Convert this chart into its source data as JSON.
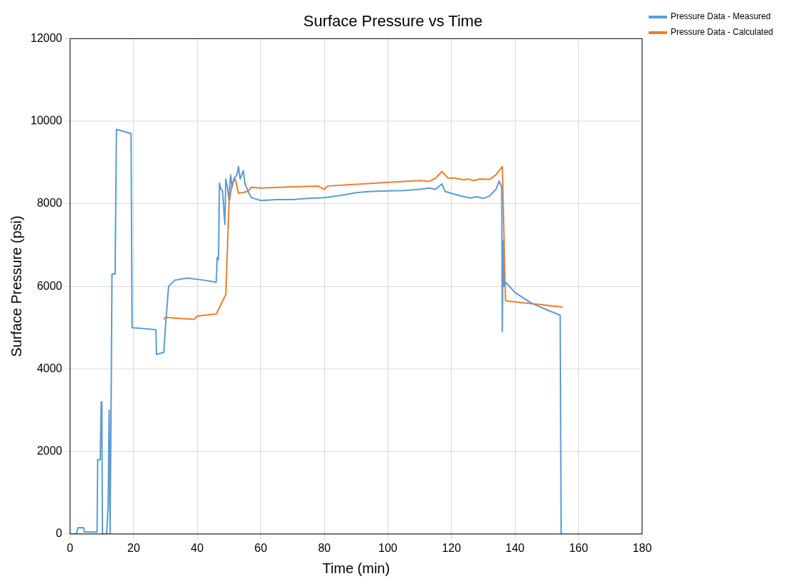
{
  "chart_data": {
    "type": "line",
    "title": "Surface Pressure vs Time",
    "xlabel": "Time (min)",
    "ylabel": "Surface Pressure (psi)",
    "xlim": [
      0,
      180
    ],
    "xticks": [
      0,
      20,
      40,
      60,
      80,
      100,
      120,
      140,
      160,
      180
    ],
    "ylim": [
      0,
      12000
    ],
    "yticks": [
      0,
      2000,
      4000,
      6000,
      8000,
      10000,
      12000
    ],
    "grid": true,
    "legend": "top right",
    "marker": "none",
    "line_style": "solid",
    "series": [
      {
        "name": "Pressure Data - Measured",
        "color": "#5b9bd5",
        "x": [
          0,
          2,
          2.5,
          4.3,
          4.5,
          8.5,
          8.7,
          9.5,
          9.8,
          10,
          10.2,
          11.5,
          12,
          12.3,
          12.6,
          12.9,
          13.2,
          14,
          14.2,
          14.6,
          19.2,
          19.5,
          27,
          27.2,
          29.5,
          30,
          31,
          33,
          37,
          42,
          46,
          46.3,
          46.7,
          47,
          47.5,
          48,
          48.7,
          49,
          49.5,
          50,
          50.5,
          51,
          51.5,
          52.5,
          53,
          53.5,
          54.5,
          55,
          56,
          57,
          60,
          65,
          70,
          75,
          80,
          85,
          90,
          95,
          100,
          105,
          110,
          113,
          115,
          117,
          118,
          121,
          124,
          126,
          128,
          130,
          132,
          134,
          135,
          135.8,
          136,
          136.2,
          136.5,
          137,
          140,
          145,
          150,
          154.2,
          154.5
        ],
        "values": [
          0,
          0,
          150,
          150,
          50,
          50,
          1800,
          1800,
          3200,
          3200,
          0,
          0,
          700,
          3000,
          0,
          3000,
          6300,
          6300,
          6500,
          9800,
          9700,
          5000,
          4950,
          4350,
          4400,
          5000,
          6000,
          6150,
          6200,
          6150,
          6100,
          6700,
          6650,
          8500,
          8350,
          8300,
          7500,
          8600,
          8400,
          8100,
          8700,
          8400,
          8600,
          8700,
          8900,
          8600,
          8800,
          8500,
          8300,
          8150,
          8080,
          8100,
          8100,
          8130,
          8150,
          8200,
          8270,
          8300,
          8310,
          8320,
          8350,
          8380,
          8350,
          8480,
          8300,
          8230,
          8170,
          8140,
          8170,
          8130,
          8190,
          8350,
          8550,
          8400,
          4900,
          7100,
          6000,
          6100,
          5850,
          5600,
          5430,
          5300,
          0
        ]
      },
      {
        "name": "Pressure Data - Calculated",
        "color": "#ed7d31",
        "x": [
          29.5,
          30,
          35,
          39,
          40,
          46,
          49,
          50,
          51,
          52,
          53,
          56,
          57,
          60,
          70,
          78,
          80,
          81,
          90,
          100,
          110,
          113,
          115,
          117,
          119,
          121,
          124,
          125,
          127,
          129,
          132,
          134,
          136,
          137,
          145,
          155
        ],
        "values": [
          5200,
          5250,
          5220,
          5200,
          5280,
          5330,
          5800,
          8000,
          8500,
          8600,
          8250,
          8300,
          8400,
          8380,
          8410,
          8430,
          8350,
          8430,
          8470,
          8520,
          8560,
          8540,
          8620,
          8780,
          8620,
          8620,
          8580,
          8600,
          8560,
          8600,
          8590,
          8700,
          8900,
          5650,
          5580,
          5500
        ]
      }
    ]
  }
}
